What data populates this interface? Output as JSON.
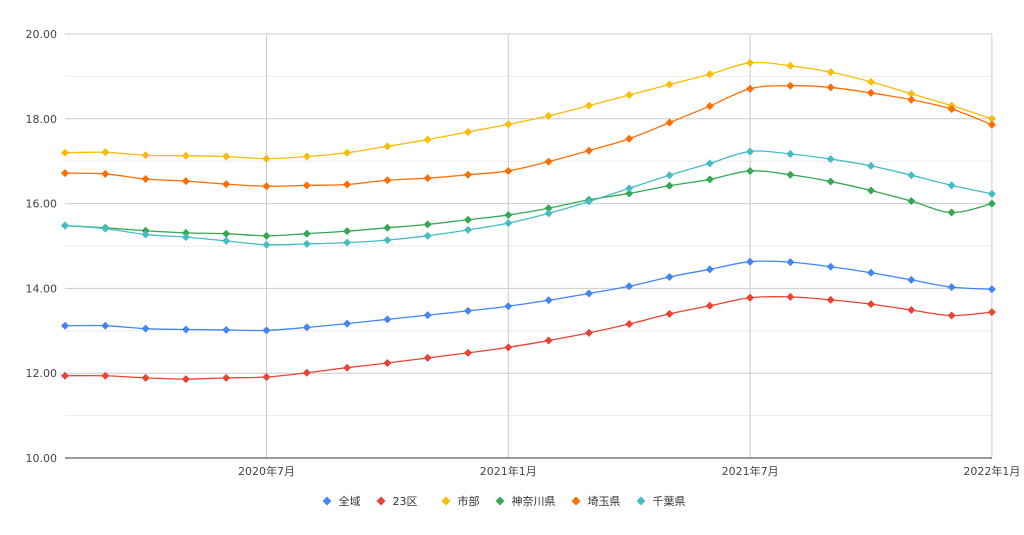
{
  "chart_data": {
    "type": "line",
    "title": "",
    "xlabel": "",
    "ylabel": "",
    "ylim": [
      10,
      20
    ],
    "y_ticks": [
      "10.00",
      "12.00",
      "14.00",
      "16.00",
      "18.00",
      "20.00"
    ],
    "y_tick_values": [
      10,
      12,
      14,
      16,
      18,
      20
    ],
    "x": [
      "2020-02",
      "2020-03",
      "2020-04",
      "2020-05",
      "2020-06",
      "2020-07",
      "2020-08",
      "2020-09",
      "2020-10",
      "2020-11",
      "2020-12",
      "2021-01",
      "2021-02",
      "2021-03",
      "2021-04",
      "2021-05",
      "2021-06",
      "2021-07",
      "2021-08",
      "2021-09",
      "2021-10",
      "2021-11",
      "2021-12",
      "2022-01"
    ],
    "x_ticks": [
      {
        "x": "2020-07",
        "label": "2020年7月"
      },
      {
        "x": "2021-01",
        "label": "2021年1月"
      },
      {
        "x": "2021-07",
        "label": "2021年7月"
      },
      {
        "x": "2022-01",
        "label": "2022年1月"
      }
    ],
    "grid": true,
    "smooth": true,
    "legend_position": "bottom",
    "series": [
      {
        "name": "全域",
        "color": "#4285f4",
        "values": [
          13.12,
          13.12,
          13.05,
          13.03,
          13.02,
          13.01,
          13.08,
          13.17,
          13.27,
          13.37,
          13.47,
          13.58,
          13.72,
          13.88,
          14.05,
          14.27,
          14.45,
          14.63,
          14.62,
          14.51,
          14.37,
          14.2,
          14.03,
          13.98
        ]
      },
      {
        "name": "23区",
        "color": "#ea4335",
        "values": [
          11.94,
          11.94,
          11.89,
          11.86,
          11.89,
          11.91,
          12.01,
          12.13,
          12.24,
          12.36,
          12.48,
          12.61,
          12.77,
          12.95,
          13.16,
          13.4,
          13.59,
          13.78,
          13.8,
          13.73,
          13.63,
          13.49,
          13.36,
          13.44
        ]
      },
      {
        "name": "市部",
        "color": "#fbbc04",
        "values": [
          17.2,
          17.21,
          17.14,
          17.13,
          17.11,
          17.06,
          17.11,
          17.2,
          17.35,
          17.51,
          17.69,
          17.87,
          18.07,
          18.31,
          18.56,
          18.81,
          19.05,
          19.32,
          19.25,
          19.1,
          18.87,
          18.59,
          18.31,
          18.0
        ]
      },
      {
        "name": "神奈川県",
        "color": "#34a853",
        "values": [
          15.48,
          15.43,
          15.36,
          15.31,
          15.29,
          15.24,
          15.29,
          15.35,
          15.43,
          15.51,
          15.62,
          15.73,
          15.89,
          16.09,
          16.24,
          16.42,
          16.57,
          16.77,
          16.68,
          16.52,
          16.31,
          16.06,
          15.79,
          16.0
        ]
      },
      {
        "name": "埼玉県",
        "color": "#ff6d01",
        "values": [
          16.72,
          16.7,
          16.58,
          16.53,
          16.46,
          16.41,
          16.43,
          16.45,
          16.55,
          16.6,
          16.68,
          16.77,
          16.99,
          17.25,
          17.53,
          17.91,
          18.3,
          18.71,
          18.78,
          18.74,
          18.61,
          18.45,
          18.23,
          17.86
        ]
      },
      {
        "name": "千葉県",
        "color": "#46bdc6",
        "values": [
          15.48,
          15.41,
          15.27,
          15.21,
          15.12,
          15.03,
          15.05,
          15.08,
          15.14,
          15.24,
          15.38,
          15.54,
          15.77,
          16.05,
          16.36,
          16.67,
          16.95,
          17.23,
          17.17,
          17.05,
          16.89,
          16.67,
          16.43,
          16.23
        ]
      }
    ]
  }
}
